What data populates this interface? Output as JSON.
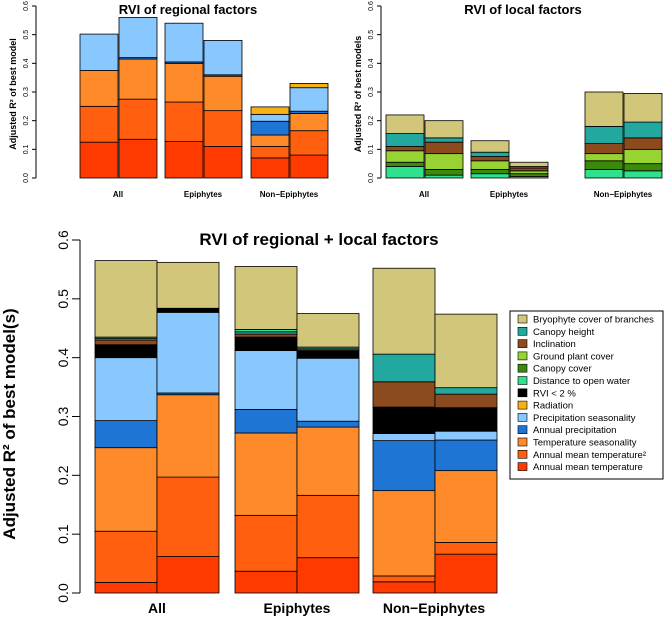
{
  "layers": [
    {
      "key": "amt",
      "label": "Annual mean temperature",
      "color": "#ff3a00"
    },
    {
      "key": "amt2",
      "label": "Annual mean temperature²",
      "color": "#ff5f0f"
    },
    {
      "key": "ts",
      "label": "Temperature seasonality",
      "color": "#ff8a2a"
    },
    {
      "key": "ap",
      "label": "Annual precipitation",
      "color": "#1f75d4"
    },
    {
      "key": "ps",
      "label": "Precipitation seasonality",
      "color": "#88c8ff"
    },
    {
      "key": "rad",
      "label": "Radiation",
      "color": "#f5b216"
    },
    {
      "key": "rvi",
      "label": "RVI < 2 %",
      "color": "#000000"
    },
    {
      "key": "dow",
      "label": "Distance to open water",
      "color": "#2ee18c"
    },
    {
      "key": "cc",
      "label": "Canopy cover",
      "color": "#3a8a0c"
    },
    {
      "key": "gpc",
      "label": "Ground plant cover",
      "color": "#97d332"
    },
    {
      "key": "inc",
      "label": "Inclination",
      "color": "#8c4a1f"
    },
    {
      "key": "ch",
      "label": "Canopy height",
      "color": "#23a8a0"
    },
    {
      "key": "bcb",
      "label": "Bryophyte cover of branches",
      "color": "#d2c67a"
    }
  ],
  "legend_order": [
    "bcb",
    "ch",
    "inc",
    "gpc",
    "cc",
    "dow",
    "rvi",
    "rad",
    "ps",
    "ap",
    "ts",
    "amt2",
    "amt"
  ],
  "chart_data": [
    {
      "id": "regional",
      "type": "bar",
      "title": "RVI of regional factors",
      "ylabel": "Adjusted R² of best model",
      "ylim": [
        0,
        0.6
      ],
      "yticks": [
        0.0,
        0.1,
        0.2,
        0.3,
        0.4,
        0.5,
        0.6
      ],
      "ytick_labels": [
        "0.0",
        "0.1",
        "0.2",
        "0.3",
        "0.4",
        "0.5",
        "0.6"
      ],
      "groups": [
        "All",
        "Epiphytes",
        "Non−Epiphytes"
      ],
      "bars": [
        {
          "group": 0,
          "stack": [
            [
              "amt",
              0.125
            ],
            [
              "amt2",
              0.125
            ],
            [
              "ts",
              0.125
            ],
            [
              "ps",
              0.127
            ]
          ]
        },
        {
          "group": 0,
          "stack": [
            [
              "amt",
              0.135
            ],
            [
              "amt2",
              0.14
            ],
            [
              "ts",
              0.14
            ],
            [
              "ap",
              0.005
            ],
            [
              "ps",
              0.14
            ]
          ]
        },
        {
          "group": 1,
          "stack": [
            [
              "amt",
              0.127
            ],
            [
              "amt2",
              0.138
            ],
            [
              "ts",
              0.135
            ],
            [
              "ap",
              0.005
            ],
            [
              "ps",
              0.135
            ]
          ]
        },
        {
          "group": 1,
          "stack": [
            [
              "amt",
              0.11
            ],
            [
              "amt2",
              0.125
            ],
            [
              "ts",
              0.12
            ],
            [
              "ap",
              0.005
            ],
            [
              "ps",
              0.12
            ]
          ]
        },
        {
          "group": 2,
          "stack": [
            [
              "amt",
              0.07
            ],
            [
              "amt2",
              0.04
            ],
            [
              "ts",
              0.04
            ],
            [
              "ap",
              0.048
            ],
            [
              "ps",
              0.024
            ],
            [
              "rad",
              0.026
            ]
          ]
        },
        {
          "group": 2,
          "stack": [
            [
              "amt",
              0.08
            ],
            [
              "amt2",
              0.085
            ],
            [
              "ts",
              0.06
            ],
            [
              "ap",
              0.008
            ],
            [
              "ps",
              0.082
            ],
            [
              "rad",
              0.015
            ]
          ]
        }
      ]
    },
    {
      "id": "local",
      "type": "bar",
      "title": "RVI of local factors",
      "ylabel": "Adjusted R² of best models",
      "ylim": [
        0,
        0.6
      ],
      "yticks": [
        0.0,
        0.1,
        0.2,
        0.3,
        0.4,
        0.5,
        0.6
      ],
      "ytick_labels": [
        "0.0",
        "0.1",
        "0.2",
        "0.3",
        "0.4",
        "0.5",
        "0.6"
      ],
      "groups": [
        "All",
        "Epiphytes",
        "Non−Epiphytes"
      ],
      "bars": [
        {
          "group": 0,
          "stack": [
            [
              "dow",
              0.04
            ],
            [
              "cc",
              0.015
            ],
            [
              "gpc",
              0.04
            ],
            [
              "inc",
              0.015
            ],
            [
              "ch",
              0.045
            ],
            [
              "bcb",
              0.065
            ]
          ]
        },
        {
          "group": 0,
          "stack": [
            [
              "dow",
              0.01
            ],
            [
              "cc",
              0.02
            ],
            [
              "gpc",
              0.055
            ],
            [
              "inc",
              0.04
            ],
            [
              "ch",
              0.015
            ],
            [
              "bcb",
              0.06
            ]
          ]
        },
        {
          "group": 1,
          "stack": [
            [
              "dow",
              0.015
            ],
            [
              "cc",
              0.015
            ],
            [
              "gpc",
              0.03
            ],
            [
              "inc",
              0.015
            ],
            [
              "ch",
              0.015
            ],
            [
              "bcb",
              0.04
            ]
          ]
        },
        {
          "group": 1,
          "stack": [
            [
              "dow",
              0.005
            ],
            [
              "cc",
              0.01
            ],
            [
              "gpc",
              0.01
            ],
            [
              "inc",
              0.01
            ],
            [
              "ch",
              0.005
            ],
            [
              "bcb",
              0.015
            ]
          ]
        },
        {
          "group": 2,
          "stack": [
            [
              "dow",
              0.03
            ],
            [
              "cc",
              0.03
            ],
            [
              "gpc",
              0.025
            ],
            [
              "inc",
              0.035
            ],
            [
              "ch",
              0.06
            ],
            [
              "bcb",
              0.12
            ]
          ]
        },
        {
          "group": 2,
          "stack": [
            [
              "dow",
              0.025
            ],
            [
              "cc",
              0.025
            ],
            [
              "gpc",
              0.05
            ],
            [
              "inc",
              0.04
            ],
            [
              "ch",
              0.055
            ],
            [
              "bcb",
              0.1
            ]
          ]
        }
      ]
    },
    {
      "id": "combined",
      "type": "bar",
      "title": "RVI of regional + local factors",
      "ylabel": "Adjusted R² of best model(s)",
      "ylim": [
        0,
        0.6
      ],
      "yticks": [
        0.0,
        0.1,
        0.2,
        0.3,
        0.4,
        0.5,
        0.6
      ],
      "ytick_labels": [
        "0.0",
        "0.1",
        "0.2",
        "0.3",
        "0.4",
        "0.5",
        "0.6"
      ],
      "groups": [
        "All",
        "Epiphytes",
        "Non−Epiphytes"
      ],
      "bars": [
        {
          "group": 0,
          "stack": [
            [
              "amt",
              0.018
            ],
            [
              "amt2",
              0.087
            ],
            [
              "ts",
              0.142
            ],
            [
              "ap",
              0.046
            ],
            [
              "ps",
              0.107
            ],
            [
              "rvi",
              0.022
            ],
            [
              "inc",
              0.008
            ],
            [
              "ch",
              0.003
            ],
            [
              "dow",
              0.002
            ],
            [
              "bcb",
              0.13
            ]
          ]
        },
        {
          "group": 0,
          "stack": [
            [
              "amt",
              0.062
            ],
            [
              "amt2",
              0.135
            ],
            [
              "ts",
              0.14
            ],
            [
              "ap",
              0.003
            ],
            [
              "ps",
              0.137
            ],
            [
              "rvi",
              0.007
            ],
            [
              "bcb",
              0.078
            ]
          ]
        },
        {
          "group": 1,
          "stack": [
            [
              "amt",
              0.037
            ],
            [
              "amt2",
              0.095
            ],
            [
              "ts",
              0.14
            ],
            [
              "ap",
              0.04
            ],
            [
              "ps",
              0.1
            ],
            [
              "rvi",
              0.023
            ],
            [
              "inc",
              0.005
            ],
            [
              "ch",
              0.004
            ],
            [
              "dow",
              0.004
            ],
            [
              "bcb",
              0.107
            ]
          ]
        },
        {
          "group": 1,
          "stack": [
            [
              "amt",
              0.06
            ],
            [
              "amt2",
              0.106
            ],
            [
              "ts",
              0.116
            ],
            [
              "ap",
              0.01
            ],
            [
              "ps",
              0.107
            ],
            [
              "rvi",
              0.013
            ],
            [
              "inc",
              0.003
            ],
            [
              "ch",
              0.003
            ],
            [
              "bcb",
              0.057
            ]
          ]
        },
        {
          "group": 2,
          "stack": [
            [
              "amt",
              0.019
            ],
            [
              "amt2",
              0.01
            ],
            [
              "ts",
              0.145
            ],
            [
              "ap",
              0.085
            ],
            [
              "ps",
              0.012
            ],
            [
              "rvi",
              0.045
            ],
            [
              "inc",
              0.043
            ],
            [
              "ch",
              0.047
            ],
            [
              "bcb",
              0.146
            ]
          ]
        },
        {
          "group": 2,
          "stack": [
            [
              "amt",
              0.066
            ],
            [
              "amt2",
              0.02
            ],
            [
              "ts",
              0.122
            ],
            [
              "ap",
              0.052
            ],
            [
              "ps",
              0.015
            ],
            [
              "rvi",
              0.04
            ],
            [
              "inc",
              0.023
            ],
            [
              "ch",
              0.011
            ],
            [
              "bcb",
              0.125
            ]
          ]
        }
      ]
    }
  ]
}
